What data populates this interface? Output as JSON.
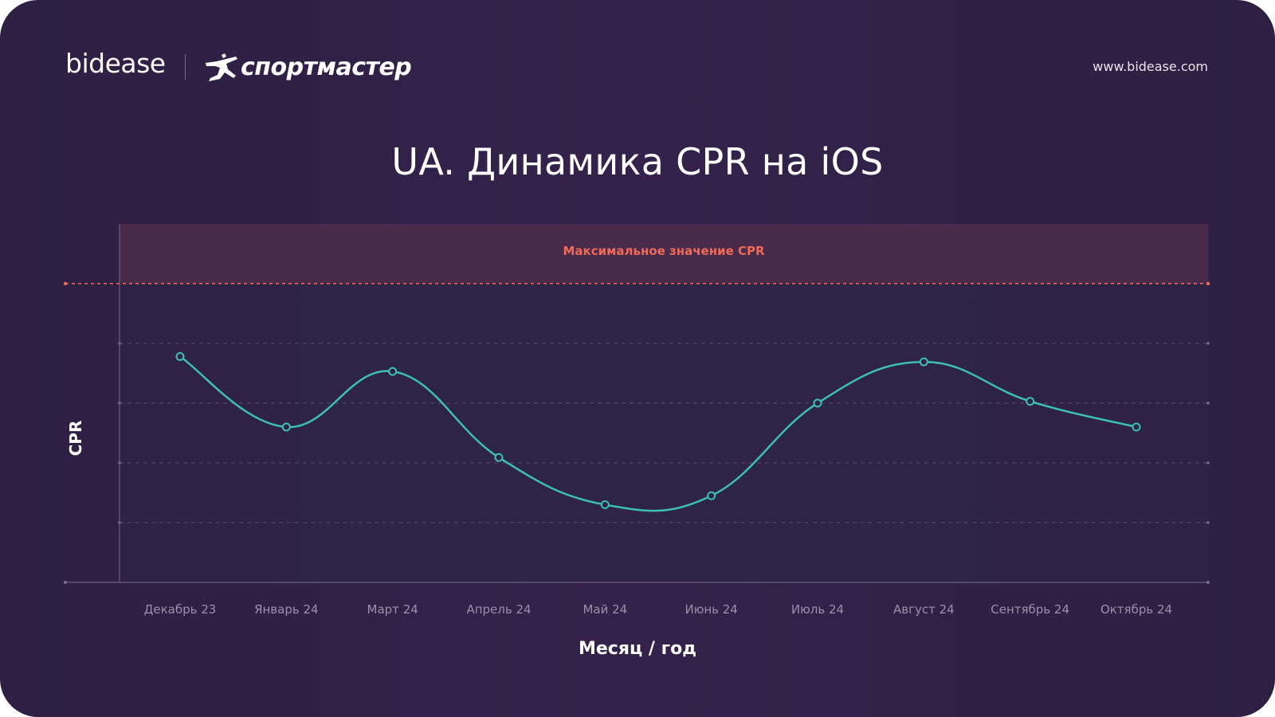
{
  "header": {
    "brand_left": "bidease",
    "brand_right": "спортмастер",
    "url": "www.bidease.com"
  },
  "colors": {
    "background": "#2f2044",
    "line": "#3dbfb5",
    "max_line": "#f06a58",
    "max_band": "#4a2a4a"
  },
  "chart_data": {
    "type": "line",
    "title": "UA. Динамика CPR на iOS",
    "xlabel": "Месяц / год",
    "ylabel": "CPR",
    "categories": [
      "Декабрь 23",
      "Январь 24",
      "Март 24",
      "Апрель 24",
      "Май 24",
      "Июнь 24",
      "Июль 24",
      "Август 24",
      "Сентябрь 24",
      "Октябрь 24"
    ],
    "series": [
      {
        "values": [
          3.78,
          2.6,
          3.53,
          2.09,
          1.3,
          1.45,
          3.0,
          3.69,
          3.03,
          2.6
        ]
      }
    ],
    "ylim": [
      0,
      6
    ],
    "grid": true,
    "max_threshold": {
      "label": "Максимальное значение CPR",
      "value": 5
    }
  }
}
